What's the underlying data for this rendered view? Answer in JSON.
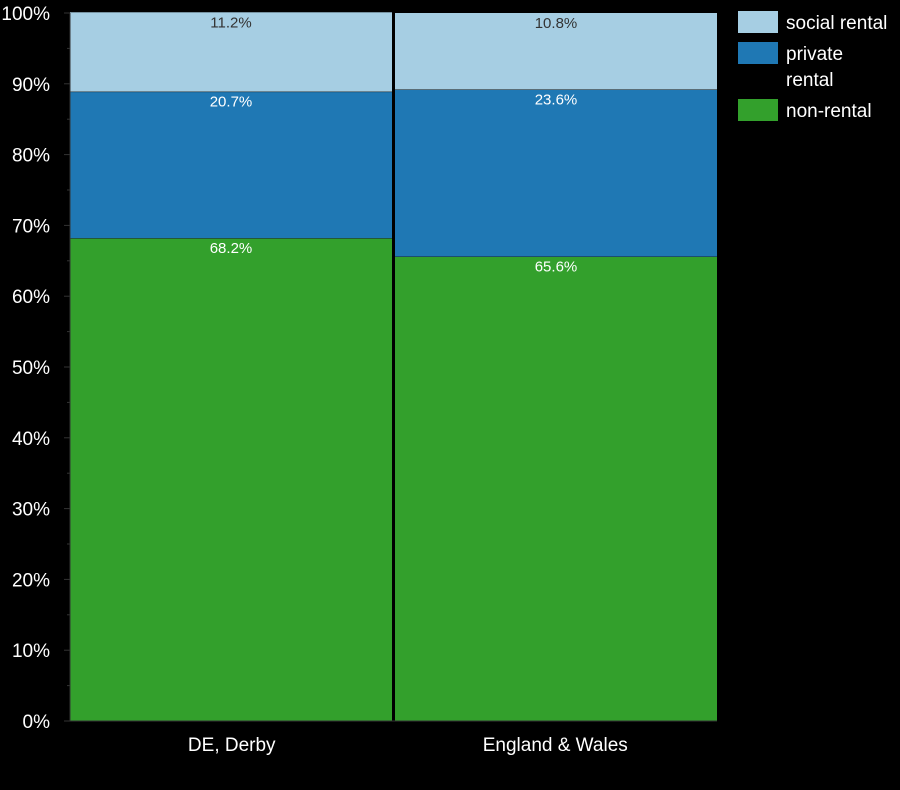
{
  "chart_data": {
    "type": "bar",
    "stacked": true,
    "categories": [
      "DE, Derby",
      "England & Wales"
    ],
    "series": [
      {
        "name": "non-rental",
        "color": "#33a02c",
        "values": [
          68.2,
          65.6
        ],
        "labels": [
          "68.2%",
          "65.6%"
        ]
      },
      {
        "name": "private rental",
        "legend_lines": [
          "private",
          "rental"
        ],
        "color": "#1f78b4",
        "values": [
          20.7,
          23.6
        ],
        "labels": [
          "20.7%",
          "23.6%"
        ]
      },
      {
        "name": "social rental",
        "color": "#a6cee3",
        "values": [
          11.2,
          10.8
        ],
        "labels": [
          "11.2%",
          "10.8%"
        ]
      }
    ],
    "legend_order": [
      "social rental",
      "private rental",
      "non-rental"
    ],
    "legend_position": "top-right",
    "ylim": [
      0,
      100
    ],
    "yticks": [
      0,
      10,
      20,
      30,
      40,
      50,
      60,
      70,
      80,
      90,
      100
    ],
    "ytick_labels": [
      "0%",
      "10%",
      "20%",
      "30%",
      "40%",
      "50%",
      "60%",
      "70%",
      "80%",
      "90%",
      "100%"
    ],
    "grid": false,
    "background": "#000000",
    "text_color": "#ffffff",
    "label_color_dark": "#333333",
    "label_color_light": "#ffffff"
  }
}
